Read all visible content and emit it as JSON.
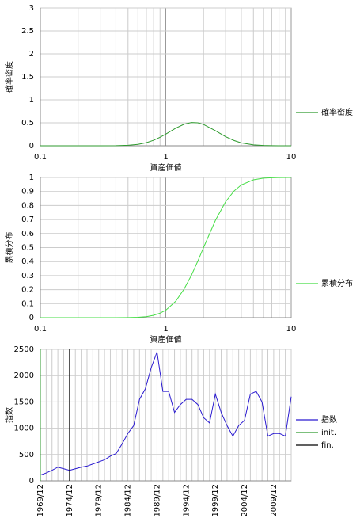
{
  "chart_data": [
    {
      "type": "line",
      "xlabel": "資産価値",
      "ylabel": "確率密度",
      "log_x": true,
      "grid": true,
      "x": [
        0.1,
        0.2,
        0.3,
        0.4,
        0.5,
        0.6,
        0.7,
        0.8,
        0.9,
        1,
        1.2,
        1.4,
        1.6,
        1.8,
        2,
        2.5,
        3,
        3.5,
        4,
        5,
        6,
        7,
        8,
        10
      ],
      "series": [
        {
          "name": "確率密度",
          "color": "#2e9a2e",
          "values": [
            0,
            0,
            0,
            0.002,
            0.01,
            0.031,
            0.067,
            0.12,
            0.184,
            0.253,
            0.382,
            0.47,
            0.507,
            0.5,
            0.464,
            0.324,
            0.198,
            0.114,
            0.063,
            0.019,
            0.006,
            0.002,
            0.001,
            0
          ]
        }
      ],
      "xlim": [
        0.1,
        10
      ],
      "xticks": [
        0.1,
        1,
        10
      ],
      "ylim": [
        0,
        3
      ],
      "yticks": [
        0,
        0.5,
        1,
        1.5,
        2,
        2.5,
        3
      ]
    },
    {
      "type": "line",
      "xlabel": "資産価値",
      "ylabel": "累積分布",
      "log_x": true,
      "grid": true,
      "x": [
        0.1,
        0.2,
        0.3,
        0.4,
        0.5,
        0.6,
        0.7,
        0.8,
        0.9,
        1,
        1.2,
        1.4,
        1.6,
        1.8,
        2,
        2.5,
        3,
        3.5,
        4,
        5,
        6,
        7,
        8,
        10
      ],
      "series": [
        {
          "name": "累積分布",
          "color": "#44dd44",
          "values": [
            0,
            0,
            0,
            0,
            0.001,
            0.003,
            0.007,
            0.017,
            0.032,
            0.053,
            0.117,
            0.204,
            0.302,
            0.403,
            0.5,
            0.698,
            0.827,
            0.903,
            0.947,
            0.983,
            0.995,
            0.998,
            0.999,
            1
          ]
        }
      ],
      "xlim": [
        0.1,
        10
      ],
      "xticks": [
        0.1,
        1,
        10
      ],
      "ylim": [
        0,
        1
      ],
      "yticks": [
        0,
        0.1,
        0.2,
        0.3,
        0.4,
        0.5,
        0.6,
        0.7,
        0.8,
        0.9,
        1
      ]
    },
    {
      "type": "line",
      "ylabel": "指数",
      "grid": true,
      "categories": [
        "1969/12",
        null,
        null,
        null,
        null,
        "1974/12",
        null,
        null,
        null,
        null,
        "1979/12",
        null,
        null,
        null,
        null,
        "1984/12",
        null,
        null,
        null,
        null,
        "1989/12",
        null,
        null,
        null,
        null,
        "1994/12",
        null,
        null,
        null,
        null,
        "1999/12",
        null,
        null,
        null,
        null,
        "2004/12",
        null,
        null,
        null,
        null,
        "2009/12",
        null,
        null,
        null
      ],
      "series": [
        {
          "name": "指数",
          "color": "#2a1ad0",
          "values": [
            110,
            150,
            200,
            260,
            230,
            200,
            230,
            260,
            280,
            320,
            360,
            400,
            470,
            520,
            700,
            900,
            1050,
            1550,
            1750,
            2150,
            2450,
            1700,
            1700,
            1300,
            1450,
            1550,
            1550,
            1450,
            1200,
            1100,
            1650,
            1300,
            1050,
            850,
            1050,
            1150,
            1650,
            1700,
            1500,
            850,
            900,
            900,
            850,
            1600
          ]
        },
        {
          "name": "init.",
          "color": "#2e9a2e",
          "marker_at": "1969/12"
        },
        {
          "name": "fin.",
          "color": "#000000",
          "marker_at": "1974/12"
        }
      ],
      "ylim": [
        0,
        2500
      ],
      "yticks": [
        0,
        500,
        1000,
        1500,
        2000,
        2500
      ]
    }
  ]
}
